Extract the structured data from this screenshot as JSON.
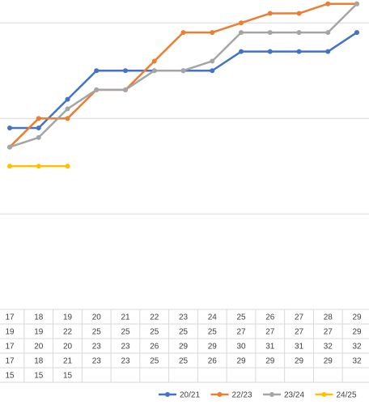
{
  "chart_data": {
    "type": "line",
    "categories": [
      17,
      18,
      19,
      20,
      21,
      22,
      23,
      24,
      25,
      26,
      27,
      28,
      29
    ],
    "series": [
      {
        "name": "20/21",
        "color": "#4472c4",
        "values": [
          19,
          19,
          22,
          25,
          25,
          25,
          25,
          25,
          27,
          27,
          27,
          27,
          29
        ]
      },
      {
        "name": "22/23",
        "color": "#ed7d31",
        "values": [
          17,
          20,
          20,
          23,
          23,
          26,
          29,
          29,
          30,
          31,
          31,
          32,
          32
        ]
      },
      {
        "name": "23/24",
        "color": "#a5a5a5",
        "values": [
          17,
          18,
          21,
          23,
          23,
          25,
          25,
          26,
          29,
          29,
          29,
          29,
          32
        ]
      },
      {
        "name": "24/25",
        "color": "#ffc000",
        "values": [
          15,
          15,
          15,
          null,
          null,
          null,
          null,
          null,
          null,
          null,
          null,
          null,
          null
        ]
      }
    ],
    "ylim": [
      0,
      32.4
    ],
    "yticks": [
      0,
      10,
      20,
      30
    ],
    "grid": true,
    "legend": "bottom"
  }
}
